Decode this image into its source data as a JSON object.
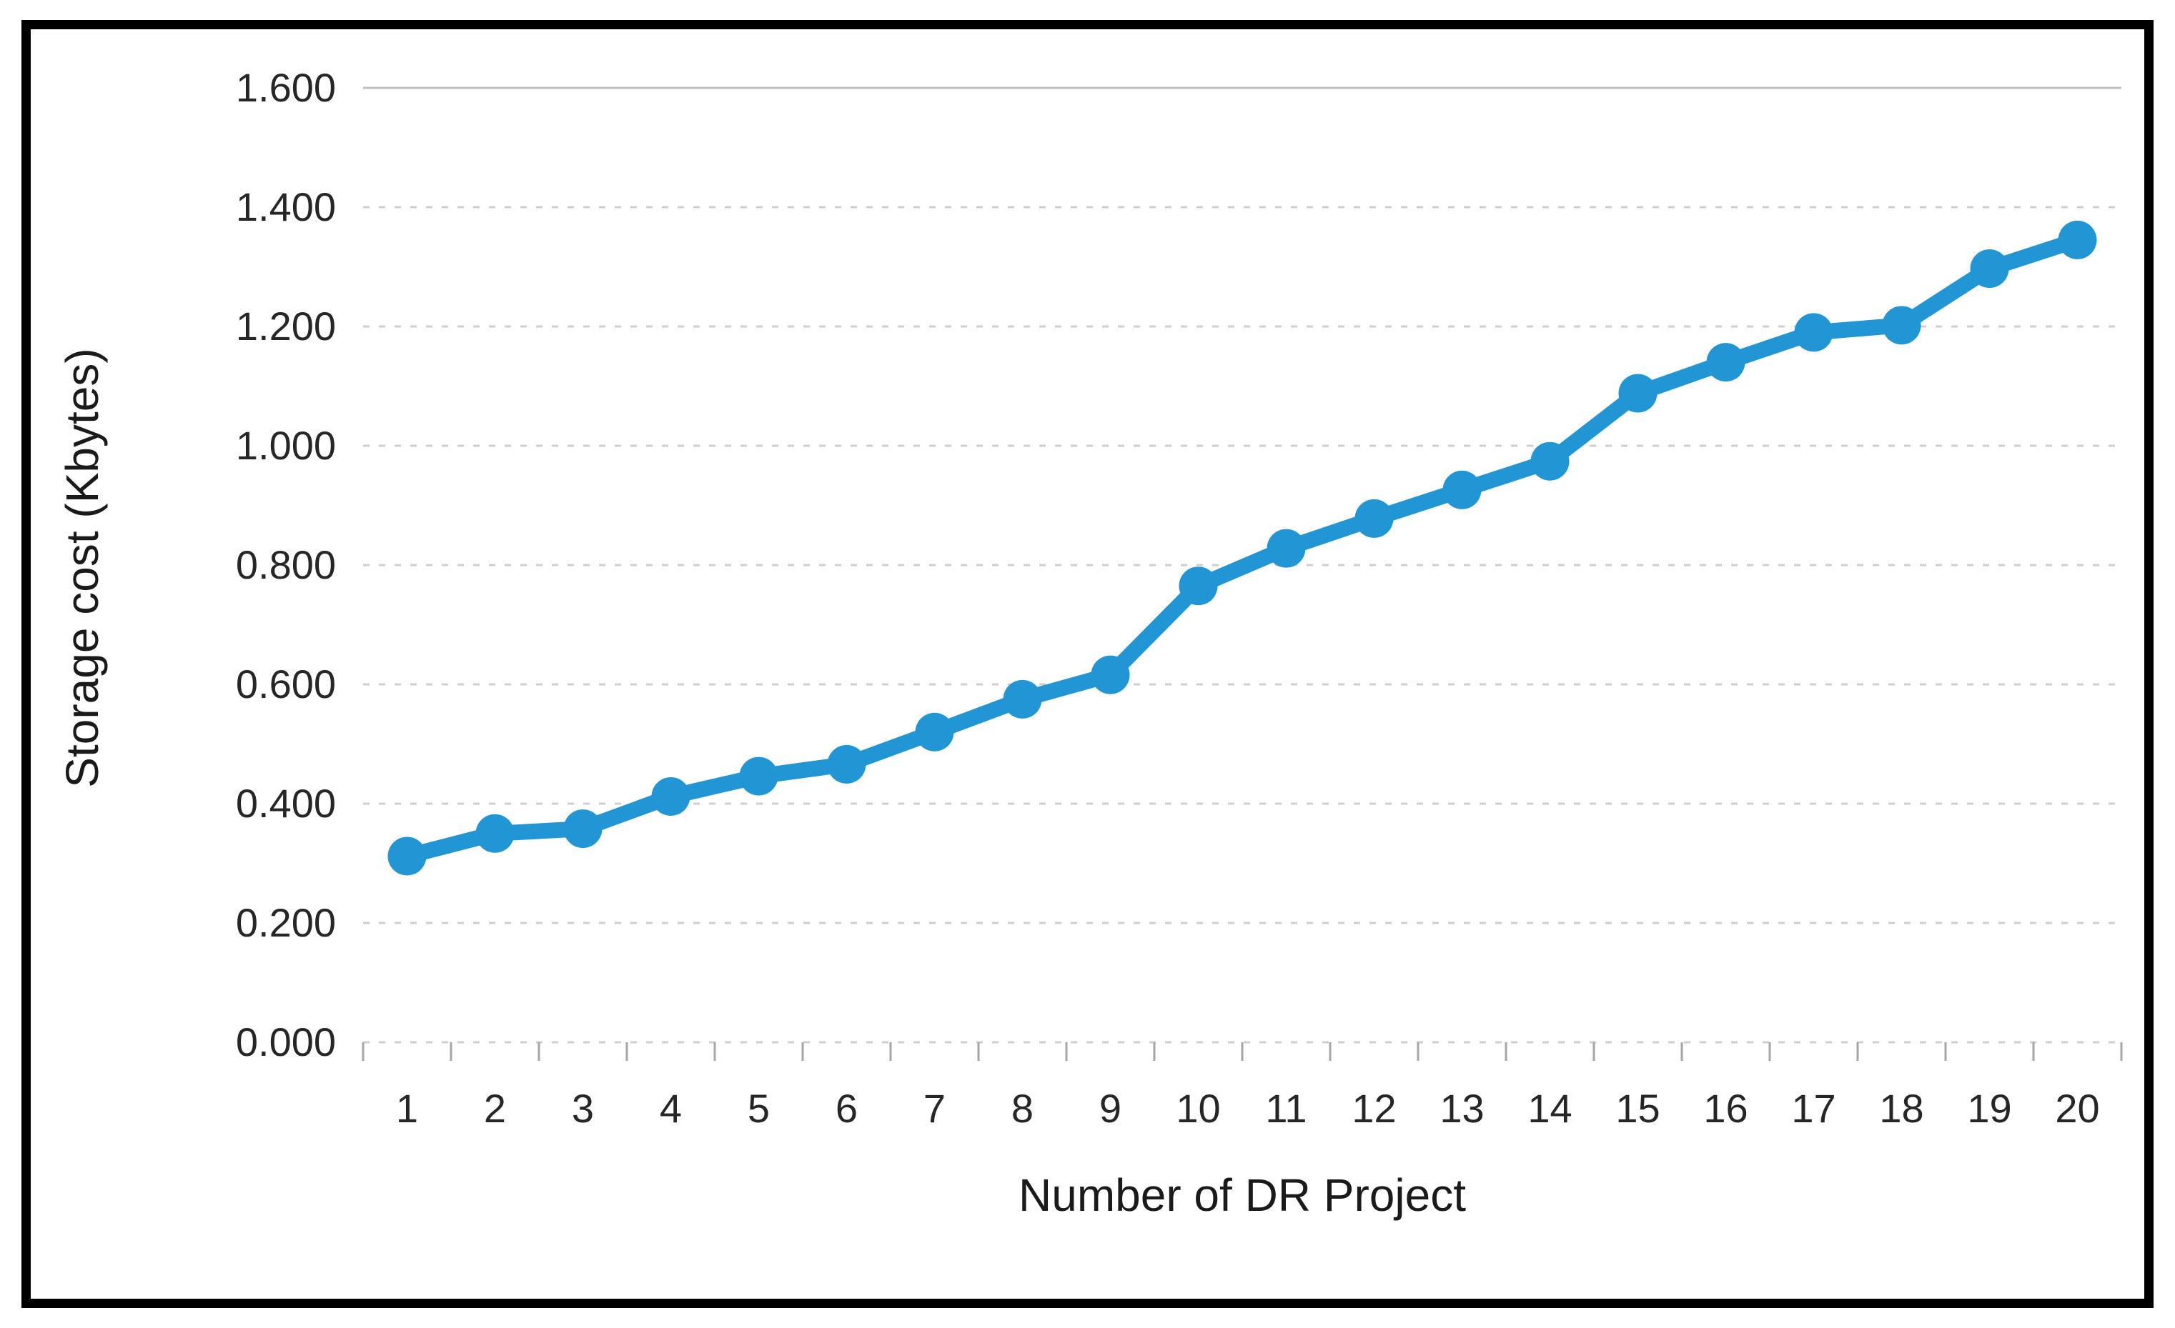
{
  "frame": {
    "border_color": "#000000",
    "background_color": "#ffffff"
  },
  "chart_data": {
    "type": "line",
    "title": "",
    "xlabel": "Number of DR Project",
    "ylabel": "Storage cost (Kbytes)",
    "x": [
      1,
      2,
      3,
      4,
      5,
      6,
      7,
      8,
      9,
      10,
      11,
      12,
      13,
      14,
      15,
      16,
      17,
      18,
      19,
      20
    ],
    "xtick_labels": [
      "1",
      "2",
      "3",
      "4",
      "5",
      "6",
      "7",
      "8",
      "9",
      "10",
      "11",
      "12",
      "13",
      "14",
      "15",
      "16",
      "17",
      "18",
      "19",
      "20"
    ],
    "values": [
      0.312,
      0.35,
      0.358,
      0.412,
      0.446,
      0.466,
      0.52,
      0.575,
      0.616,
      0.765,
      0.828,
      0.878,
      0.926,
      0.974,
      1.088,
      1.14,
      1.19,
      1.202,
      1.297,
      1.345
    ],
    "ylim": [
      0,
      1.6
    ],
    "ytick_interval": 0.2,
    "ytick_labels": [
      "0.000",
      "0.200",
      "0.400",
      "0.600",
      "0.800",
      "1.000",
      "1.200",
      "1.400",
      "1.600"
    ],
    "grid": "horizontal",
    "gridline_style": "dashed",
    "top_gridline_style": "solid",
    "gridline_color": "#cfcfcf",
    "top_gridline_color": "#bfbfbf",
    "tick_mark_color": "#a6a6a6",
    "line_color": "#2295D5",
    "marker": "circle",
    "legend_position": "none"
  }
}
